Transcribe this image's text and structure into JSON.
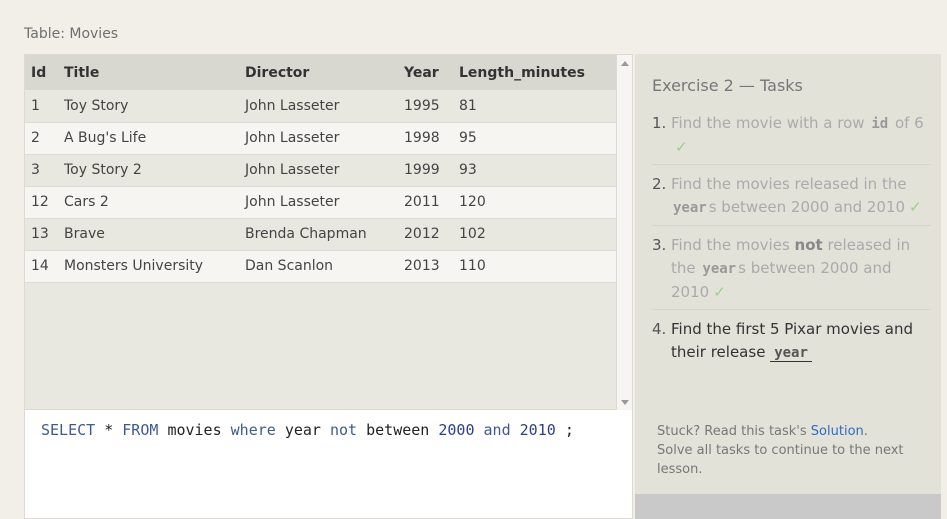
{
  "table_caption": "Table: Movies",
  "columns": [
    "Id",
    "Title",
    "Director",
    "Year",
    "Length_minutes"
  ],
  "rows": [
    [
      "1",
      "Toy Story",
      "John Lasseter",
      "1995",
      "81"
    ],
    [
      "2",
      "A Bug's Life",
      "John Lasseter",
      "1998",
      "95"
    ],
    [
      "3",
      "Toy Story 2",
      "John Lasseter",
      "1999",
      "93"
    ],
    [
      "12",
      "Cars 2",
      "John Lasseter",
      "2011",
      "120"
    ],
    [
      "13",
      "Brave",
      "Brenda Chapman",
      "2012",
      "102"
    ],
    [
      "14",
      "Monsters University",
      "Dan Scanlon",
      "2013",
      "110"
    ]
  ],
  "query": {
    "select": "SELECT",
    "star": "*",
    "from": "FROM",
    "table": "movies",
    "where": "where",
    "col": "year",
    "not": "not",
    "between": "between",
    "low": "2000",
    "and": "and",
    "high": "2010",
    "end": ";"
  },
  "tasks": {
    "title": "Exercise 2 — Tasks",
    "items": [
      {
        "num": "1.",
        "pre": "Find the movie with a row ",
        "code": "id",
        "post": " of 6",
        "check": "✓"
      },
      {
        "num": "2.",
        "pre": "Find the movies released in the ",
        "code": "year",
        "post": "s between 2000 and 2010",
        "check": "✓"
      },
      {
        "num": "3.",
        "pre": "Find the movies ",
        "strong": "not",
        "mid": " released in the ",
        "code": "year",
        "post": "s between 2000 and 2010",
        "check": "✓"
      },
      {
        "num": "4.",
        "pre": "Find the first 5 Pixar movies and their release ",
        "code": "year",
        "post": ""
      }
    ],
    "help_prefix": "Stuck? Read this task's ",
    "help_link": "Solution",
    "help_suffix": ".",
    "help_line2": "Solve all tasks to continue to the next lesson."
  },
  "colors": {
    "keyword": "#3c5b94",
    "check": "#9ccf8e",
    "link": "#2c6cc4"
  }
}
